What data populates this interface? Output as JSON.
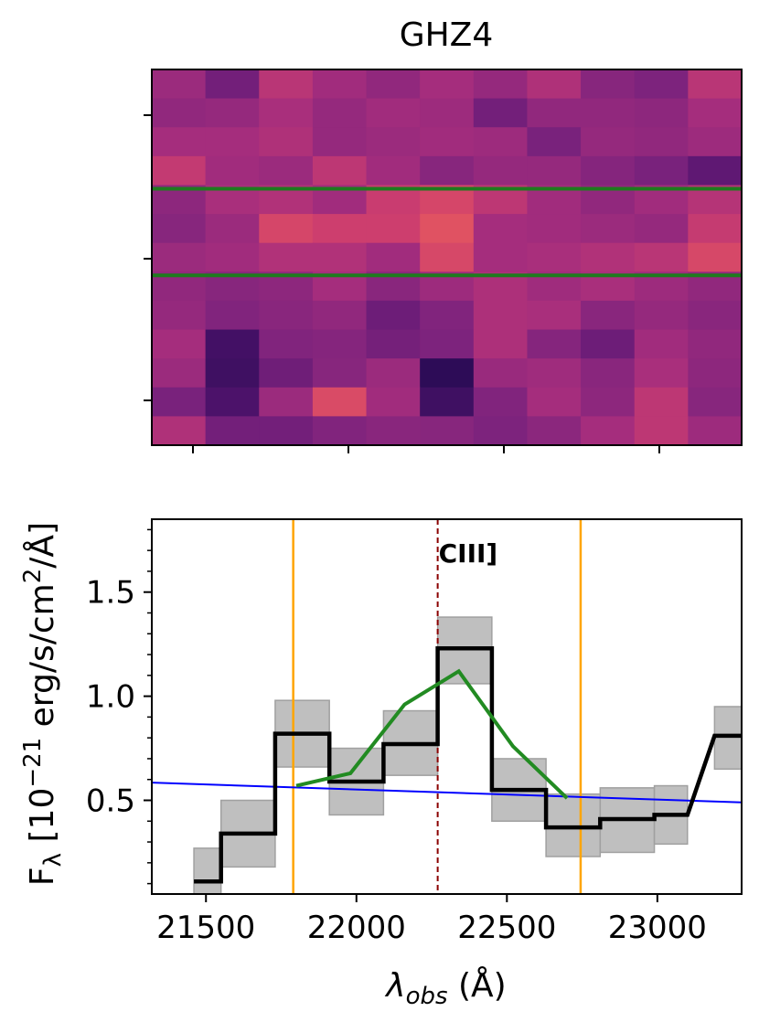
{
  "title": "GHZ4",
  "colors": {
    "bg": "#ffffff",
    "axis": "#000000",
    "step": "#000000",
    "err_fill": "#bfbfbf",
    "err_edge": "#a0a0a0",
    "model": "#228b22",
    "continuum": "#0000ff",
    "line_marker": "#8b0000",
    "window": "#ffa500",
    "aperture": "#1e7b1e"
  },
  "chart_data": [
    {
      "type": "heatmap",
      "name": "2D spectrum",
      "rows": 13,
      "cols": 11,
      "colormap": "plasma-like (magenta)",
      "value_range": [
        0,
        1
      ],
      "values": [
        [
          0.55,
          0.35,
          0.7,
          0.58,
          0.5,
          0.6,
          0.52,
          0.65,
          0.45,
          0.4,
          0.7
        ],
        [
          0.5,
          0.52,
          0.62,
          0.52,
          0.58,
          0.56,
          0.35,
          0.5,
          0.5,
          0.48,
          0.6
        ],
        [
          0.6,
          0.6,
          0.65,
          0.52,
          0.55,
          0.58,
          0.56,
          0.38,
          0.52,
          0.5,
          0.56
        ],
        [
          0.75,
          0.58,
          0.55,
          0.72,
          0.58,
          0.45,
          0.52,
          0.52,
          0.44,
          0.38,
          0.25
        ],
        [
          0.48,
          0.62,
          0.66,
          0.58,
          0.78,
          0.85,
          0.72,
          0.58,
          0.5,
          0.58,
          0.68
        ],
        [
          0.45,
          0.55,
          0.85,
          0.8,
          0.8,
          0.92,
          0.6,
          0.58,
          0.55,
          0.52,
          0.76
        ],
        [
          0.55,
          0.58,
          0.66,
          0.66,
          0.58,
          0.86,
          0.6,
          0.62,
          0.66,
          0.7,
          0.86
        ],
        [
          0.5,
          0.45,
          0.48,
          0.6,
          0.46,
          0.56,
          0.64,
          0.57,
          0.62,
          0.56,
          0.5
        ],
        [
          0.52,
          0.42,
          0.46,
          0.5,
          0.32,
          0.42,
          0.64,
          0.62,
          0.46,
          0.52,
          0.46
        ],
        [
          0.6,
          0.12,
          0.42,
          0.44,
          0.36,
          0.4,
          0.64,
          0.44,
          0.32,
          0.58,
          0.5
        ],
        [
          0.55,
          0.1,
          0.33,
          0.45,
          0.55,
          0.02,
          0.54,
          0.57,
          0.46,
          0.62,
          0.48
        ],
        [
          0.38,
          0.16,
          0.55,
          0.88,
          0.58,
          0.1,
          0.42,
          0.6,
          0.48,
          0.72,
          0.45
        ],
        [
          0.65,
          0.35,
          0.35,
          0.42,
          0.46,
          0.45,
          0.4,
          0.47,
          0.6,
          0.72,
          0.56
        ]
      ],
      "aperture_lines": [
        {
          "row_boundary": 4.0,
          "col_start": 0.5,
          "col_end": 10.5
        },
        {
          "row_boundary": 7.0,
          "col_start": 0.5,
          "col_end": 10.5
        }
      ],
      "y_ticks": [
        "",
        "",
        ""
      ],
      "x_ticks": [
        "",
        "",
        "",
        ""
      ]
    },
    {
      "type": "line",
      "name": "1D spectrum",
      "xlabel": "λobs (Å)",
      "xlabel_parts": {
        "sym": "λ",
        "sub": "obs",
        "unit": " (Å)"
      },
      "ylabel": "Fλ [10−21 erg/s/cm²/Å]",
      "ylabel_parts": {
        "pre": "F",
        "sub": "λ",
        "a": " [10",
        "sup1": "−21",
        "b": " erg/s/cm",
        "sup2": "2",
        "c": "/Å]"
      },
      "xlim": [
        21320,
        23280
      ],
      "ylim": [
        0.05,
        1.85
      ],
      "x_ticks": [
        21500,
        22000,
        22500,
        23000
      ],
      "x_tick_labels": [
        "21500",
        "22000",
        "22500",
        "23000"
      ],
      "y_ticks": [
        0.5,
        1.0,
        1.5
      ],
      "y_tick_labels": [
        "0.5",
        "1.0",
        "1.5"
      ],
      "series": [
        {
          "kind": "step",
          "bin_edges": [
            21460,
            21550,
            21730,
            21910,
            22090,
            22270,
            22450,
            22630,
            22810,
            22990,
            23100
          ],
          "values": [
            0.11,
            0.34,
            0.82,
            0.59,
            0.77,
            1.23,
            0.55,
            0.37,
            0.41,
            0.43
          ],
          "err_low": [
            0.05,
            0.18,
            0.66,
            0.43,
            0.62,
            1.06,
            0.4,
            0.23,
            0.25,
            0.29
          ],
          "err_high": [
            0.27,
            0.5,
            0.98,
            0.75,
            0.93,
            1.38,
            0.7,
            0.53,
            0.56,
            0.57
          ],
          "last_step": {
            "x0": 23190,
            "x1": 23280,
            "value": 0.81,
            "err_low": 0.65,
            "err_high": 0.95
          }
        },
        {
          "kind": "model",
          "x": [
            21800,
            21980,
            22160,
            22340,
            22520,
            22700
          ],
          "y": [
            0.57,
            0.63,
            0.96,
            1.12,
            0.76,
            0.51
          ]
        },
        {
          "kind": "continuum",
          "x": [
            21320,
            23280
          ],
          "y": [
            0.585,
            0.49
          ]
        }
      ],
      "vlines": [
        {
          "x": 21790,
          "kind": "window"
        },
        {
          "x": 22270,
          "kind": "line_marker",
          "label": "CIII]"
        },
        {
          "x": 22745,
          "kind": "window"
        }
      ]
    }
  ]
}
